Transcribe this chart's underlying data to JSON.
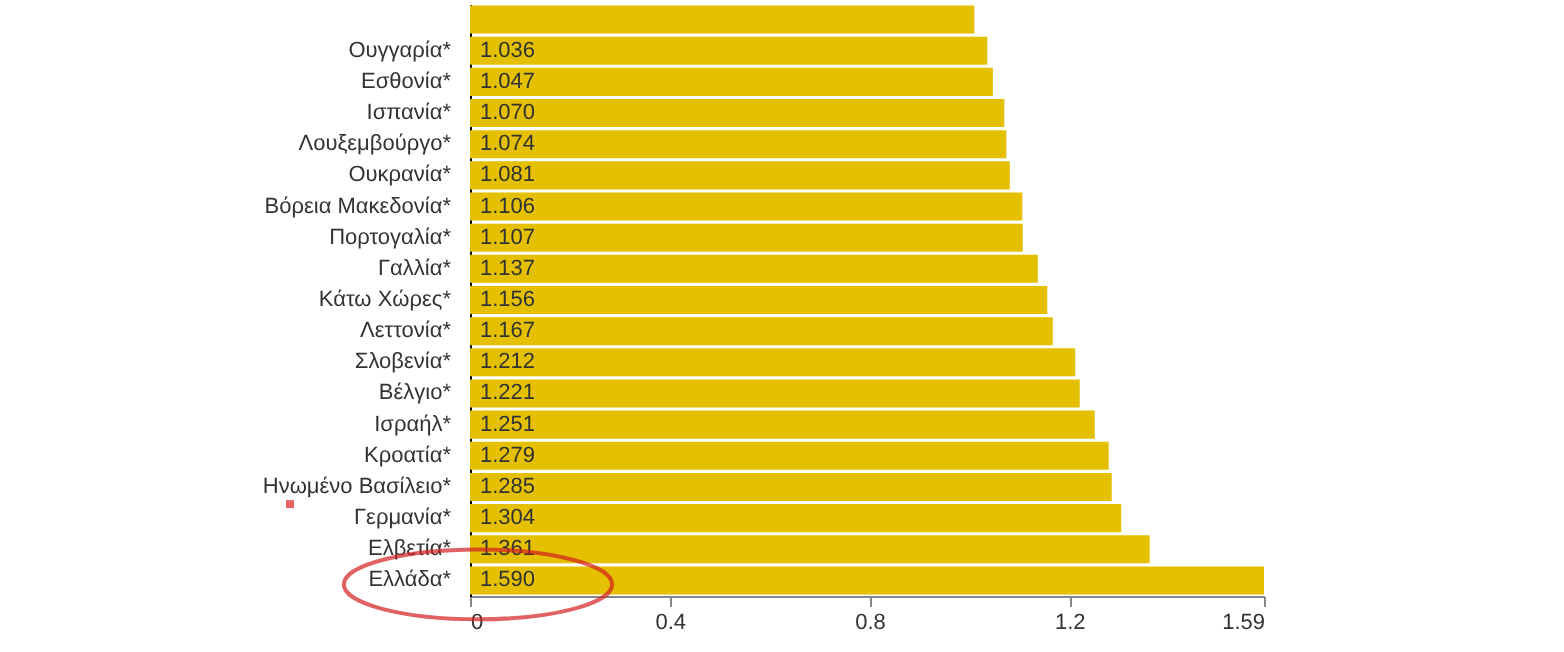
{
  "chart_data": {
    "type": "bar",
    "orientation": "horizontal",
    "categories": [
      null,
      "Ουγγαρία*",
      "Εσθονία*",
      "Ισπανία*",
      "Λουξεμβούργο*",
      "Ουκρανία*",
      "Βόρεια Μακεδονία*",
      "Πορτογαλία*",
      "Γαλλία*",
      "Κάτω Χώρες*",
      "Λεττονία*",
      "Σλοβενία*",
      "Βέλγιο*",
      "Ισραήλ*",
      "Κροατία*",
      "Ηνωμένο Βασίλειο*",
      "Γερμανία*",
      "Ελβετία*",
      "Ελλάδα*"
    ],
    "values": [
      1.01,
      1.036,
      1.047,
      1.07,
      1.074,
      1.081,
      1.106,
      1.107,
      1.137,
      1.156,
      1.167,
      1.212,
      1.221,
      1.251,
      1.279,
      1.285,
      1.304,
      1.361,
      1.59
    ],
    "value_labels": [
      null,
      "1.036",
      "1.047",
      "1.070",
      "1.074",
      "1.081",
      "1.106",
      "1.107",
      "1.137",
      "1.156",
      "1.167",
      "1.212",
      "1.221",
      "1.251",
      "1.279",
      "1.285",
      "1.304",
      "1.361",
      "1.590"
    ],
    "color": "#e4c000",
    "xlim": [
      0,
      1.59
    ],
    "xticks": [
      0,
      0.4,
      0.8,
      1.2,
      1.59
    ],
    "grid": false
  }
}
